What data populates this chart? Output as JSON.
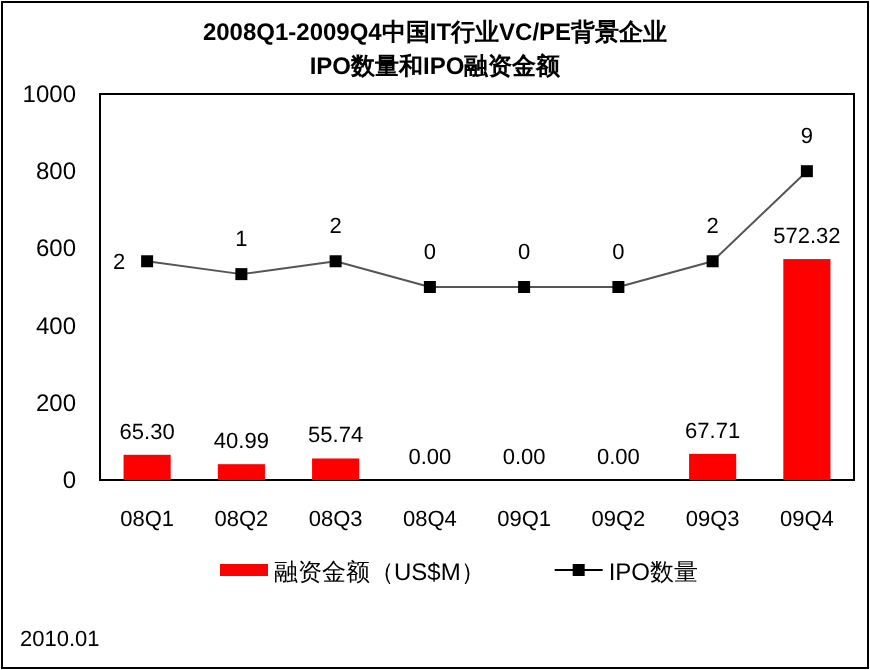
{
  "chart_data": {
    "type": "bar",
    "title": "2008Q1-2009Q4中国IT行业VC/PE背景企业\nIPO数量和IPO融资金额",
    "categories": [
      "08Q1",
      "08Q2",
      "08Q3",
      "08Q4",
      "09Q1",
      "09Q2",
      "09Q3",
      "09Q4"
    ],
    "series": [
      {
        "name": "融资金额（US$M）",
        "color": "#ff0000",
        "values": [
          65.3,
          40.99,
          55.74,
          0.0,
          0.0,
          0.0,
          67.71,
          572.32
        ],
        "value_labels": [
          "65.30",
          "40.99",
          "55.74",
          "0.00",
          "0.00",
          "0.00",
          "67.71",
          "572.32"
        ]
      },
      {
        "name": "IPO数量",
        "type": "line",
        "axis": "y2",
        "color": "#000000",
        "marker": "square",
        "values": [
          2,
          1,
          2,
          0,
          0,
          0,
          2,
          9
        ],
        "value_labels": [
          "2",
          "1",
          "2",
          "0",
          "0",
          "0",
          "2",
          "9"
        ]
      }
    ],
    "ylim": [
      0,
      1000
    ],
    "yticks": [
      0,
      200,
      400,
      600,
      800,
      1000
    ],
    "y2lim": [
      -15,
      15
    ],
    "tick_labels": "y",
    "legend": "bottom",
    "grid": false,
    "annotations": [
      "2010.01"
    ]
  }
}
